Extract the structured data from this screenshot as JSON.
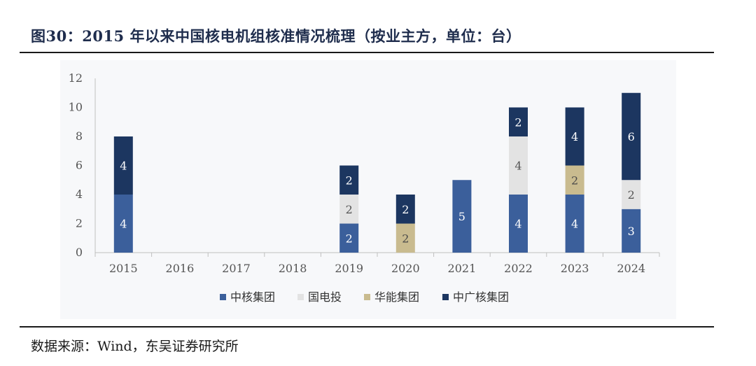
{
  "header": {
    "title": "图30：2015 年以来中国核电机组核准情况梳理（按业主方，单位：台）"
  },
  "footer": {
    "source": "数据来源：Wind，东吴证券研究所"
  },
  "colors": {
    "中核集团": "#3b5f9b",
    "国电投": "#e3e3e3",
    "华能集团": "#c9bb8f",
    "中广核集团": "#1c3660"
  },
  "chart_data": {
    "type": "bar",
    "stacked": true,
    "categories": [
      "2015",
      "2016",
      "2017",
      "2018",
      "2019",
      "2020",
      "2021",
      "2022",
      "2023",
      "2024"
    ],
    "series": [
      {
        "name": "中核集团",
        "values": [
          4,
          0,
          0,
          0,
          2,
          0,
          5,
          4,
          4,
          3
        ]
      },
      {
        "name": "国电投",
        "values": [
          0,
          0,
          0,
          0,
          2,
          0,
          0,
          4,
          0,
          2
        ]
      },
      {
        "name": "华能集团",
        "values": [
          0,
          0,
          0,
          0,
          0,
          2,
          0,
          0,
          2,
          0
        ]
      },
      {
        "name": "中广核集团",
        "values": [
          4,
          0,
          0,
          0,
          2,
          2,
          0,
          2,
          4,
          6
        ]
      }
    ],
    "ylim": [
      0,
      12
    ],
    "yticks": [
      "0",
      "2",
      "4",
      "6",
      "8",
      "10",
      "12"
    ],
    "legend": "bottom",
    "grid": false
  }
}
